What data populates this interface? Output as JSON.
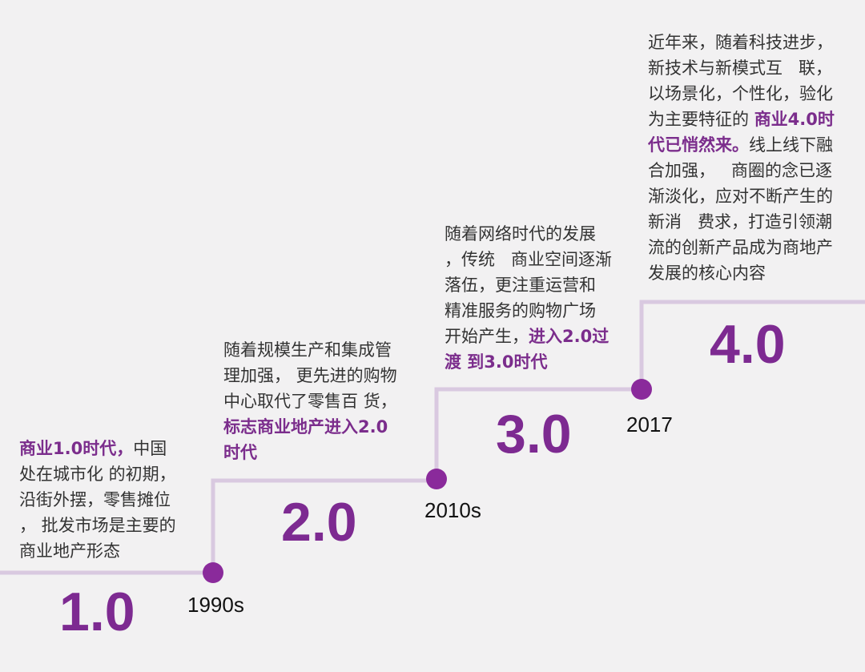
{
  "colors": {
    "line": "#d9c9e0",
    "dot": "#8a2a9b",
    "version": "#7d2a91",
    "highlight": "#7b2d8c",
    "text": "#333333",
    "background": "#f2f1f2"
  },
  "stages": [
    {
      "version": "1.0",
      "year": "1990s",
      "text_lines": [
        [
          {
            "t": "商业1.0时代，",
            "hl": true
          },
          {
            "t": "中国",
            "hl": false
          }
        ],
        [
          {
            "t": "处在城市化 的初期，",
            "hl": false
          }
        ],
        [
          {
            "t": "沿街外摆，零售摊位",
            "hl": false
          }
        ],
        [
          {
            "t": "， 批发市场是主要的",
            "hl": false
          }
        ],
        [
          {
            "t": "商业地产形态",
            "hl": false
          }
        ]
      ]
    },
    {
      "version": "2.0",
      "year": "2010s",
      "text_lines": [
        [
          {
            "t": "随着规模生产和集成管",
            "hl": false
          }
        ],
        [
          {
            "t": "理加强， 更先进的购物",
            "hl": false
          }
        ],
        [
          {
            "t": "中心取代了零售百 货，",
            "hl": false
          }
        ],
        [
          {
            "t": "标志商业地产进入2.0",
            "hl": true
          }
        ],
        [
          {
            "t": "时代",
            "hl": true
          }
        ]
      ]
    },
    {
      "version": "3.0",
      "year": "2017",
      "text_lines": [
        [
          {
            "t": "随着网络时代的发展",
            "hl": false
          }
        ],
        [
          {
            "t": "，传统   商业空间逐渐",
            "hl": false
          }
        ],
        [
          {
            "t": "落伍，更注重运营和",
            "hl": false
          }
        ],
        [
          {
            "t": "精准服务的购物广场",
            "hl": false
          }
        ],
        [
          {
            "t": "开始产生，",
            "hl": false
          },
          {
            "t": "进入2.0过",
            "hl": true
          }
        ],
        [
          {
            "t": "渡 到3.0时代",
            "hl": true
          }
        ]
      ]
    },
    {
      "version": "4.0",
      "year": "",
      "text_lines": [
        [
          {
            "t": "近年来，随着科技进步，",
            "hl": false
          }
        ],
        [
          {
            "t": "新技术与新模式互   联，",
            "hl": false
          }
        ],
        [
          {
            "t": "以场景化，个性化，验化",
            "hl": false
          }
        ],
        [
          {
            "t": "为主要特征的 ",
            "hl": false
          },
          {
            "t": "商业4.0时",
            "hl": true
          }
        ],
        [
          {
            "t": "代已悄然来。",
            "hl": true
          },
          {
            "t": "线上线下融",
            "hl": false
          }
        ],
        [
          {
            "t": "合加强，   商圈的念已逐",
            "hl": false
          }
        ],
        [
          {
            "t": "渐淡化，应对不断产生的",
            "hl": false
          }
        ],
        [
          {
            "t": "新消   费求，打造引领潮",
            "hl": false
          }
        ],
        [
          {
            "t": "流的创新产品成为商地产",
            "hl": false
          }
        ],
        [
          {
            "t": "发展的核心内容",
            "hl": false
          }
        ]
      ]
    }
  ]
}
